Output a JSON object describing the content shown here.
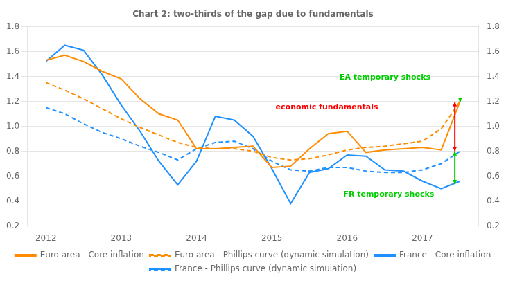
{
  "chart_data": {
    "type": "line",
    "title": "Chart 2: two-thirds of the gap due to fundamentals",
    "x": [
      2012.0,
      2012.25,
      2012.5,
      2012.75,
      2013.0,
      2013.25,
      2013.5,
      2013.75,
      2014.0,
      2014.25,
      2014.5,
      2014.75,
      2015.0,
      2015.25,
      2015.5,
      2015.75,
      2016.0,
      2016.25,
      2016.5,
      2016.75,
      2017.0,
      2017.25,
      2017.5
    ],
    "series": [
      {
        "name": "Euro area - Core inflation",
        "color": "#FF8C00",
        "line_style": "solid",
        "values": [
          1.53,
          1.57,
          1.52,
          1.44,
          1.38,
          1.22,
          1.1,
          1.05,
          0.82,
          0.82,
          0.83,
          0.84,
          0.67,
          0.68,
          0.82,
          0.94,
          0.96,
          0.79,
          0.81,
          0.82,
          0.83,
          0.81,
          1.2
        ]
      },
      {
        "name": "Euro area - Phillips curve (dynamic simulation)",
        "color": "#FF8C00",
        "line_style": "dashed",
        "values": [
          1.35,
          1.29,
          1.22,
          1.14,
          1.06,
          0.99,
          0.93,
          0.87,
          0.83,
          0.82,
          0.82,
          0.8,
          0.75,
          0.73,
          0.74,
          0.77,
          0.81,
          0.83,
          0.84,
          0.86,
          0.88,
          0.98,
          1.2
        ]
      },
      {
        "name": "France - Core inflation",
        "color": "#1E90FF",
        "line_style": "solid",
        "values": [
          1.52,
          1.65,
          1.61,
          1.41,
          1.17,
          0.96,
          0.72,
          0.53,
          0.72,
          1.08,
          1.05,
          0.92,
          0.66,
          0.38,
          0.63,
          0.66,
          0.77,
          0.76,
          0.65,
          0.64,
          0.56,
          0.5,
          0.56
        ]
      },
      {
        "name": "France - Phillips curve (dynamic simulation)",
        "color": "#1E90FF",
        "line_style": "dashed",
        "values": [
          1.15,
          1.1,
          1.02,
          0.95,
          0.9,
          0.84,
          0.79,
          0.73,
          0.82,
          0.87,
          0.88,
          0.82,
          0.72,
          0.65,
          0.64,
          0.67,
          0.67,
          0.64,
          0.63,
          0.63,
          0.65,
          0.7,
          0.8
        ]
      }
    ],
    "xlim": [
      2011.75,
      2017.75
    ],
    "xticks": [
      2012,
      2013,
      2014,
      2015,
      2016,
      2017
    ],
    "ylim": [
      0.2,
      1.8
    ],
    "yticks": [
      0.2,
      0.4,
      0.6,
      0.8,
      {
        "value": 1.0,
        "label": "1.0"
      },
      1.2,
      1.4,
      1.6,
      1.8
    ],
    "y2lim": [
      0.2,
      1.8
    ],
    "y2ticks": [
      0.2,
      0.4,
      0.6,
      0.8,
      {
        "value": 1.0,
        "label": "1.0"
      },
      1.2,
      1.4,
      1.6,
      1.8
    ],
    "grid": true,
    "legend": "bottom",
    "arrows": [
      {
        "x": 2017.43,
        "from": 0.8,
        "to": 1.195,
        "color": "red",
        "style": "<->"
      },
      {
        "x": 2017.5,
        "from": 1.23,
        "to": 1.195,
        "color": "#00CC00",
        "style": "-|>"
      },
      {
        "x": 2017.43,
        "from": 0.535,
        "to": 0.8,
        "color": "#00CC00",
        "style": "<->"
      }
    ],
    "annotations": [
      {
        "text": "EA temporary shocks",
        "x": 2015.9,
        "y": 1.36,
        "color": "#00CC00"
      },
      {
        "text": "economic fundamentals",
        "x": 2015.05,
        "y": 1.12,
        "color": "red"
      },
      {
        "text": "FR temporary shocks",
        "x": 2015.95,
        "y": 0.42,
        "color": "#00CC00"
      }
    ]
  }
}
